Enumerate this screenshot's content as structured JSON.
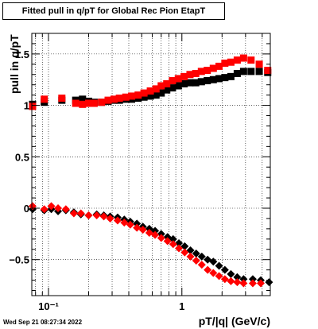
{
  "title": "Fitted pull in q/pT for Global Rec Pion EtapT",
  "date": "Wed Sep 21 08:27:34 2022",
  "colors": {
    "series1": "#000000",
    "series2": "#ff0000",
    "axis": "#000000"
  },
  "chart_data": {
    "type": "scatter",
    "title": "Fitted pull in q/pT for Global Rec Pion EtapT",
    "xlabel": "pT/|q| (GeV/c)",
    "ylabel": "pull in q/pT",
    "xscale": "log",
    "xlim": [
      0.075,
      4.6
    ],
    "ylim": [
      -0.85,
      1.7
    ],
    "grid": true,
    "x_ticks": [
      {
        "value": 0.1,
        "label": "10⁻¹"
      },
      {
        "value": 1,
        "label": "1"
      }
    ],
    "y_ticks": [
      {
        "value": -0.5,
        "label": "−0.5"
      },
      {
        "value": 0,
        "label": "0"
      },
      {
        "value": 0.5,
        "label": "0.5"
      },
      {
        "value": 1,
        "label": "1"
      },
      {
        "value": 1.5,
        "label": "1.5"
      }
    ],
    "series": [
      {
        "color": "#000000",
        "marker": "square",
        "points": [
          [
            0.076,
            1.01
          ],
          [
            0.093,
            1.03
          ],
          [
            0.126,
            1.05
          ],
          [
            0.16,
            1.05
          ],
          [
            0.18,
            1.06
          ],
          [
            0.2,
            1.04
          ],
          [
            0.22,
            1.03
          ],
          [
            0.25,
            1.03
          ],
          [
            0.28,
            1.04
          ],
          [
            0.31,
            1.05
          ],
          [
            0.34,
            1.05
          ],
          [
            0.38,
            1.06
          ],
          [
            0.42,
            1.06
          ],
          [
            0.47,
            1.07
          ],
          [
            0.52,
            1.08
          ],
          [
            0.58,
            1.09
          ],
          [
            0.64,
            1.1
          ],
          [
            0.7,
            1.12
          ],
          [
            0.77,
            1.15
          ],
          [
            0.85,
            1.17
          ],
          [
            0.94,
            1.19
          ],
          [
            1.04,
            1.21
          ],
          [
            1.15,
            1.22
          ],
          [
            1.27,
            1.22
          ],
          [
            1.4,
            1.23
          ],
          [
            1.55,
            1.24
          ],
          [
            1.72,
            1.25
          ],
          [
            1.9,
            1.26
          ],
          [
            2.1,
            1.27
          ],
          [
            2.33,
            1.28
          ],
          [
            2.6,
            1.31
          ],
          [
            2.9,
            1.33
          ],
          [
            3.3,
            1.33
          ],
          [
            3.8,
            1.33
          ],
          [
            4.4,
            1.32
          ]
        ]
      },
      {
        "color": "#ff0000",
        "marker": "square",
        "points": [
          [
            0.076,
            0.99
          ],
          [
            0.093,
            1.06
          ],
          [
            0.126,
            1.07
          ],
          [
            0.16,
            1.02
          ],
          [
            0.18,
            1.01
          ],
          [
            0.2,
            1.02
          ],
          [
            0.22,
            1.02
          ],
          [
            0.25,
            1.03
          ],
          [
            0.28,
            1.05
          ],
          [
            0.31,
            1.06
          ],
          [
            0.34,
            1.07
          ],
          [
            0.38,
            1.08
          ],
          [
            0.42,
            1.09
          ],
          [
            0.47,
            1.1
          ],
          [
            0.52,
            1.12
          ],
          [
            0.58,
            1.14
          ],
          [
            0.64,
            1.16
          ],
          [
            0.7,
            1.19
          ],
          [
            0.77,
            1.21
          ],
          [
            0.85,
            1.24
          ],
          [
            0.94,
            1.26
          ],
          [
            1.04,
            1.28
          ],
          [
            1.15,
            1.3
          ],
          [
            1.27,
            1.31
          ],
          [
            1.4,
            1.33
          ],
          [
            1.55,
            1.34
          ],
          [
            1.72,
            1.36
          ],
          [
            1.9,
            1.38
          ],
          [
            2.1,
            1.41
          ],
          [
            2.33,
            1.42
          ],
          [
            2.6,
            1.44
          ],
          [
            2.9,
            1.46
          ],
          [
            3.3,
            1.44
          ],
          [
            3.8,
            1.4
          ],
          [
            4.4,
            1.34
          ]
        ]
      },
      {
        "color": "#000000",
        "marker": "diamond",
        "points": [
          [
            0.076,
            -0.01
          ],
          [
            0.093,
            -0.02
          ],
          [
            0.105,
            -0.01
          ],
          [
            0.118,
            -0.03
          ],
          [
            0.135,
            -0.02
          ],
          [
            0.155,
            -0.04
          ],
          [
            0.175,
            -0.06
          ],
          [
            0.2,
            -0.07
          ],
          [
            0.23,
            -0.06
          ],
          [
            0.26,
            -0.07
          ],
          [
            0.29,
            -0.08
          ],
          [
            0.33,
            -0.09
          ],
          [
            0.37,
            -0.11
          ],
          [
            0.41,
            -0.13
          ],
          [
            0.46,
            -0.15
          ],
          [
            0.51,
            -0.18
          ],
          [
            0.57,
            -0.2
          ],
          [
            0.63,
            -0.22
          ],
          [
            0.7,
            -0.25
          ],
          [
            0.78,
            -0.28
          ],
          [
            0.86,
            -0.3
          ],
          [
            0.95,
            -0.34
          ],
          [
            1.05,
            -0.37
          ],
          [
            1.16,
            -0.41
          ],
          [
            1.28,
            -0.44
          ],
          [
            1.41,
            -0.47
          ],
          [
            1.56,
            -0.5
          ],
          [
            1.72,
            -0.52
          ],
          [
            1.9,
            -0.56
          ],
          [
            2.1,
            -0.6
          ],
          [
            2.33,
            -0.64
          ],
          [
            2.6,
            -0.67
          ],
          [
            2.9,
            -0.69
          ],
          [
            3.4,
            -0.69
          ],
          [
            3.9,
            -0.7
          ],
          [
            4.5,
            -0.72
          ]
        ]
      },
      {
        "color": "#ff0000",
        "marker": "diamond",
        "points": [
          [
            0.076,
            0.02
          ],
          [
            0.093,
            -0.01
          ],
          [
            0.105,
            0.02
          ],
          [
            0.118,
            0.0
          ],
          [
            0.135,
            -0.01
          ],
          [
            0.155,
            -0.05
          ],
          [
            0.175,
            -0.05
          ],
          [
            0.2,
            -0.07
          ],
          [
            0.23,
            -0.07
          ],
          [
            0.26,
            -0.08
          ],
          [
            0.29,
            -0.1
          ],
          [
            0.33,
            -0.12
          ],
          [
            0.37,
            -0.14
          ],
          [
            0.41,
            -0.16
          ],
          [
            0.46,
            -0.19
          ],
          [
            0.51,
            -0.21
          ],
          [
            0.57,
            -0.24
          ],
          [
            0.63,
            -0.26
          ],
          [
            0.7,
            -0.29
          ],
          [
            0.78,
            -0.32
          ],
          [
            0.86,
            -0.35
          ],
          [
            0.95,
            -0.39
          ],
          [
            1.05,
            -0.43
          ],
          [
            1.16,
            -0.47
          ],
          [
            1.28,
            -0.51
          ],
          [
            1.41,
            -0.55
          ],
          [
            1.56,
            -0.6
          ],
          [
            1.72,
            -0.63
          ],
          [
            1.9,
            -0.66
          ],
          [
            2.1,
            -0.69
          ],
          [
            2.33,
            -0.71
          ],
          [
            2.6,
            -0.72
          ],
          [
            2.9,
            -0.73
          ],
          [
            3.4,
            -0.73
          ],
          [
            3.9,
            -0.73
          ]
        ]
      }
    ]
  }
}
